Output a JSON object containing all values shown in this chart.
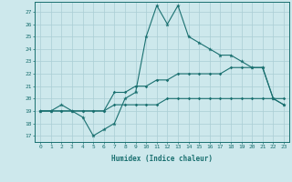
{
  "xlabel": "Humidex (Indice chaleur)",
  "x": [
    0,
    1,
    2,
    3,
    4,
    5,
    6,
    7,
    8,
    9,
    10,
    11,
    12,
    13,
    14,
    15,
    16,
    17,
    18,
    19,
    20,
    21,
    22,
    23
  ],
  "line1": [
    19,
    19,
    19.5,
    19,
    18.5,
    17,
    17.5,
    18,
    20,
    20.5,
    25,
    27.5,
    26,
    27.5,
    25,
    24.5,
    24,
    23.5,
    23.5,
    23,
    22.5,
    22.5,
    20,
    19.5
  ],
  "line2": [
    19,
    19,
    19,
    19,
    19,
    19,
    19,
    20.5,
    20.5,
    21,
    21,
    21.5,
    21.5,
    22,
    22,
    22,
    22,
    22,
    22.5,
    22.5,
    22.5,
    22.5,
    20,
    19.5
  ],
  "line3": [
    19,
    19,
    19,
    19,
    19,
    19,
    19,
    19.5,
    19.5,
    19.5,
    19.5,
    19.5,
    20,
    20,
    20,
    20,
    20,
    20,
    20,
    20,
    20,
    20,
    20,
    20
  ],
  "bg_color": "#cde8ec",
  "grid_color": "#aacdd5",
  "line_color": "#1a7070",
  "ylim": [
    16.5,
    27.8
  ],
  "yticks": [
    17,
    18,
    19,
    20,
    21,
    22,
    23,
    24,
    25,
    26,
    27
  ],
  "xlim": [
    -0.5,
    23.5
  ]
}
